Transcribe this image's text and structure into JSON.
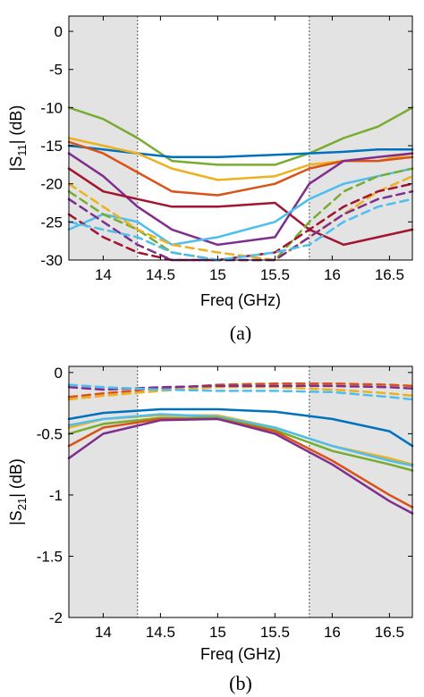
{
  "chart_data": [
    {
      "type": "line",
      "panel_caption": "(a)",
      "xlabel": "Freq (GHz)",
      "ylabel_main": "|S",
      "ylabel_sub": "11",
      "ylabel_tail": "| (dB)",
      "xlim": [
        13.7,
        16.7
      ],
      "ylim": [
        -30,
        2
      ],
      "xticks": [
        {
          "v": 14,
          "l": "14"
        },
        {
          "v": 14.5,
          "l": "14.5"
        },
        {
          "v": 15,
          "l": "15"
        },
        {
          "v": 15.5,
          "l": "15.5"
        },
        {
          "v": 16,
          "l": "16"
        },
        {
          "v": 16.5,
          "l": "16.5"
        }
      ],
      "yticks": [
        {
          "v": 0,
          "l": "0"
        },
        {
          "v": -5,
          "l": "-5"
        },
        {
          "v": -10,
          "l": "-10"
        },
        {
          "v": -15,
          "l": "-15"
        },
        {
          "v": -20,
          "l": "-20"
        },
        {
          "v": -25,
          "l": "-25"
        },
        {
          "v": -30,
          "l": "-30"
        }
      ],
      "shaded_bands": [
        [
          13.7,
          14.3
        ],
        [
          15.8,
          16.7
        ]
      ],
      "grid": false,
      "series": [
        {
          "color": "#77ac30",
          "dash": false,
          "x": [
            13.7,
            14.0,
            14.3,
            14.6,
            15.0,
            15.5,
            15.8,
            16.1,
            16.4,
            16.7
          ],
          "y": [
            -10,
            -11.5,
            -14,
            -17,
            -17.5,
            -17.5,
            -16,
            -14,
            -12.5,
            -10
          ]
        },
        {
          "color": "#0072bd",
          "dash": false,
          "x": [
            13.7,
            14.0,
            14.3,
            14.6,
            15.0,
            15.5,
            15.8,
            16.1,
            16.4,
            16.7
          ],
          "y": [
            -15,
            -15.5,
            -16,
            -16.5,
            -16.5,
            -16.2,
            -16,
            -15.8,
            -15.5,
            -15.5
          ]
        },
        {
          "color": "#edb120",
          "dash": false,
          "x": [
            13.7,
            14.0,
            14.3,
            14.6,
            15.0,
            15.5,
            15.8,
            16.1,
            16.4,
            16.7
          ],
          "y": [
            -14,
            -15,
            -16,
            -18,
            -19.5,
            -19,
            -17.5,
            -17,
            -17,
            -16
          ]
        },
        {
          "color": "#d95319",
          "dash": false,
          "x": [
            13.7,
            14.0,
            14.3,
            14.6,
            15.0,
            15.5,
            15.8,
            16.1,
            16.4,
            16.7
          ],
          "y": [
            -14.5,
            -16,
            -18.5,
            -21,
            -21.5,
            -20,
            -18,
            -17,
            -17,
            -16.5
          ]
        },
        {
          "color": "#7e2f8e",
          "dash": false,
          "x": [
            13.7,
            14.0,
            14.3,
            14.6,
            15.0,
            15.5,
            15.8,
            16.1,
            16.4,
            16.7
          ],
          "y": [
            -16,
            -19,
            -23,
            -26,
            -28,
            -27,
            -20,
            -17,
            -16.5,
            -16
          ]
        },
        {
          "color": "#a2142f",
          "dash": false,
          "x": [
            13.7,
            14.0,
            14.3,
            14.6,
            15.0,
            15.5,
            15.8,
            16.1,
            16.4,
            16.7
          ],
          "y": [
            -18,
            -21,
            -22,
            -23,
            -23,
            -22.5,
            -26,
            -28,
            -27,
            -26
          ]
        },
        {
          "color": "#4dbeee",
          "dash": false,
          "x": [
            13.7,
            14.0,
            14.3,
            14.6,
            15.0,
            15.5,
            15.8,
            16.1,
            16.4,
            16.7
          ],
          "y": [
            -26,
            -24,
            -25,
            -28,
            -27,
            -25,
            -22,
            -20,
            -19,
            -18
          ]
        },
        {
          "color": "#77ac30",
          "dash": true,
          "x": [
            13.7,
            14.0,
            14.3,
            14.6,
            15.0,
            15.5,
            15.8,
            16.1,
            16.4,
            16.7
          ],
          "y": [
            -21,
            -24,
            -26,
            -29,
            -30,
            -30,
            -25,
            -21,
            -19,
            -18
          ]
        },
        {
          "color": "#edb120",
          "dash": true,
          "x": [
            13.7,
            14.0,
            14.3,
            14.6,
            15.0,
            15.5,
            15.8,
            16.1,
            16.4,
            16.7
          ],
          "y": [
            -20,
            -23,
            -26,
            -28,
            -29,
            -30,
            -27,
            -24,
            -21,
            -19
          ]
        },
        {
          "color": "#a2142f",
          "dash": true,
          "x": [
            13.7,
            14.0,
            14.3,
            14.6,
            15.0,
            15.5,
            15.8,
            16.1,
            16.4,
            16.7
          ],
          "y": [
            -24,
            -27,
            -29,
            -30,
            -30,
            -29,
            -26,
            -23,
            -21,
            -20
          ]
        },
        {
          "color": "#7e2f8e",
          "dash": true,
          "x": [
            13.7,
            14.0,
            14.3,
            14.6,
            15.0,
            15.5,
            15.8,
            16.1,
            16.4,
            16.7
          ],
          "y": [
            -22,
            -25,
            -28,
            -30,
            -30,
            -30,
            -27,
            -24,
            -22,
            -21
          ]
        },
        {
          "color": "#4dbeee",
          "dash": true,
          "x": [
            13.7,
            14.0,
            14.3,
            14.6,
            15.0,
            15.5,
            15.8,
            16.1,
            16.4,
            16.7
          ],
          "y": [
            -25,
            -26,
            -27,
            -29,
            -30,
            -29,
            -28,
            -25,
            -23,
            -22
          ]
        }
      ]
    },
    {
      "type": "line",
      "panel_caption": "(b)",
      "xlabel": "Freq (GHz)",
      "ylabel_main": "|S",
      "ylabel_sub": "21",
      "ylabel_tail": "| (dB)",
      "xlim": [
        13.7,
        16.7
      ],
      "ylim": [
        -2,
        0.05
      ],
      "xticks": [
        {
          "v": 14,
          "l": "14"
        },
        {
          "v": 14.5,
          "l": "14.5"
        },
        {
          "v": 15,
          "l": "15"
        },
        {
          "v": 15.5,
          "l": "15.5"
        },
        {
          "v": 16,
          "l": "16"
        },
        {
          "v": 16.5,
          "l": "16.5"
        }
      ],
      "yticks": [
        {
          "v": 0,
          "l": "0"
        },
        {
          "v": -0.5,
          "l": "-0.5"
        },
        {
          "v": -1,
          "l": "-1"
        },
        {
          "v": -1.5,
          "l": "-1.5"
        },
        {
          "v": -2,
          "l": "-2"
        }
      ],
      "shaded_bands": [
        [
          13.7,
          14.3
        ],
        [
          15.8,
          16.7
        ]
      ],
      "grid": false,
      "series": [
        {
          "color": "#d95319",
          "dash": true,
          "x": [
            13.7,
            14.0,
            14.5,
            15.0,
            15.5,
            16.0,
            16.5,
            16.7
          ],
          "y": [
            -0.2,
            -0.17,
            -0.13,
            -0.1,
            -0.09,
            -0.09,
            -0.1,
            -0.11
          ]
        },
        {
          "color": "#edb120",
          "dash": true,
          "x": [
            13.7,
            14.0,
            14.5,
            15.0,
            15.5,
            16.0,
            16.5,
            16.7
          ],
          "y": [
            -0.22,
            -0.19,
            -0.15,
            -0.12,
            -0.12,
            -0.14,
            -0.17,
            -0.19
          ]
        },
        {
          "color": "#7e2f8e",
          "dash": true,
          "x": [
            13.7,
            14.0,
            14.5,
            15.0,
            15.5,
            16.0,
            16.5,
            16.7
          ],
          "y": [
            -0.12,
            -0.14,
            -0.12,
            -0.11,
            -0.11,
            -0.11,
            -0.12,
            -0.13
          ]
        },
        {
          "color": "#4dbeee",
          "dash": true,
          "x": [
            13.7,
            14.0,
            14.5,
            15.0,
            15.5,
            16.0,
            16.5,
            16.7
          ],
          "y": [
            -0.1,
            -0.12,
            -0.14,
            -0.15,
            -0.15,
            -0.16,
            -0.2,
            -0.22
          ]
        },
        {
          "color": "#0072bd",
          "dash": false,
          "x": [
            13.7,
            14.0,
            14.5,
            15.0,
            15.5,
            16.0,
            16.5,
            16.7
          ],
          "y": [
            -0.38,
            -0.33,
            -0.3,
            -0.3,
            -0.32,
            -0.38,
            -0.48,
            -0.6
          ]
        },
        {
          "color": "#edb120",
          "dash": false,
          "x": [
            13.7,
            14.0,
            14.5,
            15.0,
            15.5,
            16.0,
            16.5,
            16.7
          ],
          "y": [
            -0.45,
            -0.38,
            -0.35,
            -0.35,
            -0.45,
            -0.6,
            -0.7,
            -0.75
          ]
        },
        {
          "color": "#4dbeee",
          "dash": false,
          "x": [
            13.7,
            14.0,
            14.5,
            15.0,
            15.5,
            16.0,
            16.5,
            16.7
          ],
          "y": [
            -0.43,
            -0.38,
            -0.34,
            -0.36,
            -0.45,
            -0.6,
            -0.72,
            -0.76
          ]
        },
        {
          "color": "#77ac30",
          "dash": false,
          "x": [
            13.7,
            14.0,
            14.5,
            15.0,
            15.5,
            16.0,
            16.5,
            16.7
          ],
          "y": [
            -0.5,
            -0.42,
            -0.37,
            -0.37,
            -0.47,
            -0.64,
            -0.75,
            -0.8
          ]
        },
        {
          "color": "#d95319",
          "dash": false,
          "x": [
            13.7,
            14.0,
            14.5,
            15.0,
            15.5,
            16.0,
            16.5,
            16.7
          ],
          "y": [
            -0.6,
            -0.45,
            -0.38,
            -0.38,
            -0.48,
            -0.72,
            -1.0,
            -1.1
          ]
        },
        {
          "color": "#7e2f8e",
          "dash": false,
          "x": [
            13.7,
            14.0,
            14.5,
            15.0,
            15.5,
            16.0,
            16.5,
            16.7
          ],
          "y": [
            -0.7,
            -0.5,
            -0.39,
            -0.38,
            -0.5,
            -0.75,
            -1.05,
            -1.15
          ]
        }
      ]
    }
  ]
}
